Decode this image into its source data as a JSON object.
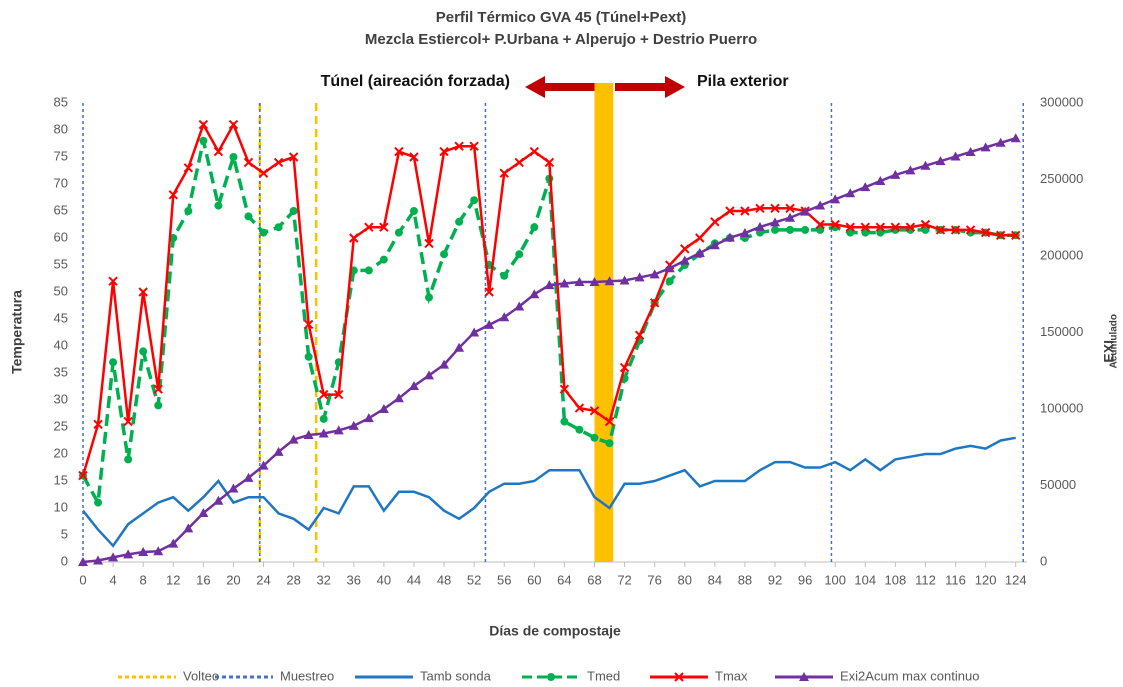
{
  "chart_data": {
    "type": "line",
    "title": "Perfil Térmico GVA 45 (Túnel+Pext)",
    "subtitle": "Mezcla Estiercol+ P.Urbana + Alperujo + Destrio Puerro",
    "x_label": "Días de compostaje",
    "y_label": "Temperatura",
    "y2_label": "EXI",
    "y2_label_sub": "Acumulado",
    "annotations": [
      "Túnel (aireación forzada)",
      "Pila exterior"
    ],
    "xlim": [
      0,
      125.5
    ],
    "xticks": [
      0,
      4,
      8,
      12,
      16,
      20,
      24,
      28,
      32,
      36,
      40,
      44,
      48,
      52,
      56,
      60,
      64,
      68,
      72,
      76,
      80,
      84,
      88,
      92,
      96,
      100,
      104,
      108,
      112,
      116,
      120,
      124
    ],
    "ylim": [
      0,
      85
    ],
    "yticks": [
      0,
      5,
      10,
      15,
      20,
      25,
      30,
      35,
      40,
      45,
      50,
      55,
      60,
      65,
      70,
      75,
      80,
      85
    ],
    "y2lim": [
      0,
      300000
    ],
    "y2ticks": [
      0,
      50000,
      100000,
      150000,
      200000,
      250000,
      300000
    ],
    "x": [
      0,
      2,
      4,
      6,
      8,
      10,
      12,
      14,
      16,
      18,
      20,
      22,
      24,
      26,
      28,
      30,
      32,
      34,
      36,
      38,
      40,
      42,
      44,
      46,
      48,
      50,
      52,
      54,
      56,
      58,
      60,
      62,
      64,
      66,
      68,
      70,
      72,
      74,
      76,
      78,
      80,
      82,
      84,
      86,
      88,
      90,
      92,
      94,
      96,
      98,
      100,
      102,
      104,
      106,
      108,
      110,
      112,
      114,
      116,
      118,
      120,
      122,
      124
    ],
    "vlines": [
      {
        "name": "Volteo",
        "color": "#ffc000",
        "x": [
          23.5,
          31
        ]
      },
      {
        "name": "Muestreo",
        "color": "#4472c4",
        "x": [
          0,
          23.5,
          53.5,
          99.5,
          125
        ]
      }
    ],
    "band": {
      "color": "#ffc000",
      "x": [
        68,
        70.5
      ]
    },
    "series": [
      {
        "name": "Tamb sonda",
        "color": "#1f77c4",
        "marker": "none",
        "dash": "none",
        "values": [
          9.5,
          6,
          3,
          7,
          9,
          11,
          12,
          9.5,
          12,
          15,
          11,
          12,
          12,
          9,
          8,
          6,
          10,
          9,
          14,
          14,
          9.5,
          13,
          13,
          12,
          9.5,
          8,
          10,
          13,
          14.5,
          14.5,
          15,
          17,
          17,
          17,
          12,
          10,
          14.5,
          14.5,
          15,
          16,
          17,
          14,
          15,
          15,
          15,
          17,
          18.5,
          18.5,
          17.5,
          17.5,
          18.5,
          17,
          19,
          17,
          19,
          19.5,
          20,
          20,
          21,
          21.5,
          21,
          22.5,
          23
        ]
      },
      {
        "name": "Tmed",
        "color": "#00b050",
        "marker": "circle",
        "dash": "12 6",
        "values": [
          16,
          11,
          37,
          19,
          39,
          29,
          60,
          65,
          78,
          66,
          75,
          64,
          61,
          62,
          65,
          38,
          26.5,
          37,
          54,
          54,
          56,
          61,
          65,
          49,
          57,
          63,
          67,
          55,
          53,
          57,
          62,
          71,
          26,
          24.5,
          23,
          22,
          34,
          41,
          48,
          52,
          55,
          57,
          59,
          60,
          60,
          61,
          61.5,
          61.5,
          61.5,
          61.5,
          62,
          61,
          61,
          61,
          61.5,
          61.5,
          61.5,
          61.5,
          61.5,
          61,
          61,
          60.5,
          60.5
        ]
      },
      {
        "name": "Tmax",
        "color": "#ff0000",
        "marker": "x",
        "dash": "none",
        "values": [
          16,
          25.5,
          52,
          26,
          50,
          32,
          68,
          73,
          81,
          76,
          81,
          74,
          72,
          74,
          75,
          44,
          31,
          31,
          60,
          62,
          62,
          76,
          75,
          59,
          76,
          77,
          77,
          50,
          72,
          74,
          76,
          74,
          32,
          28.5,
          28,
          26,
          36,
          42,
          48,
          55,
          58,
          60,
          63,
          65,
          65,
          65.5,
          65.5,
          65.5,
          65,
          62.5,
          62.5,
          62,
          62,
          62,
          62,
          62,
          62.5,
          61.5,
          61.5,
          61.5,
          61,
          60.5,
          60.5
        ]
      },
      {
        "name": "Exi2Acum max continuo",
        "color": "#7030a0",
        "marker": "triangle",
        "dash": "none",
        "axis": "y2",
        "values": [
          0,
          1000,
          3000,
          5000,
          6500,
          7000,
          12000,
          22000,
          32000,
          40000,
          48000,
          55000,
          63000,
          72000,
          80000,
          83000,
          84000,
          86000,
          89000,
          94000,
          100000,
          107000,
          115000,
          122000,
          129000,
          140000,
          150000,
          155000,
          160000,
          167000,
          175000,
          181000,
          182000,
          183000,
          183000,
          183500,
          184000,
          186000,
          188000,
          192000,
          197000,
          202000,
          207000,
          212000,
          215000,
          219000,
          222000,
          225000,
          229000,
          233000,
          237000,
          241000,
          245000,
          249000,
          253000,
          256000,
          259000,
          262000,
          265000,
          268000,
          271000,
          274000,
          277000
        ]
      }
    ]
  }
}
